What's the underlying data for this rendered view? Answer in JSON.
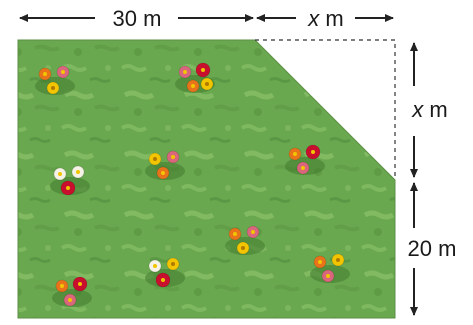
{
  "labels": {
    "top_left_value": "30 m",
    "top_right_var": "x",
    "top_right_unit": " m",
    "right_upper_var": "x",
    "right_upper_unit": " m",
    "right_lower_value": "20 m"
  },
  "colors": {
    "garden_green": "#6aa84f",
    "garden_light": "#8cc46a",
    "garden_dark": "#4f8a3a",
    "line": "#222222",
    "dashed": "#333333",
    "flower_red": "#c8102e",
    "flower_orange": "#e8731a",
    "flower_yellow": "#f2c500",
    "flower_white": "#f5f2e8",
    "flower_pink": "#d9667d"
  },
  "flower_clusters": [
    {
      "name": "cluster-1",
      "flowers": [
        "orange",
        "pink",
        "yellow"
      ]
    },
    {
      "name": "cluster-2",
      "flowers": [
        "pink",
        "red",
        "orange",
        "yellow"
      ]
    },
    {
      "name": "cluster-3",
      "flowers": [
        "yellow",
        "pink",
        "orange"
      ]
    },
    {
      "name": "cluster-4",
      "flowers": [
        "orange",
        "red",
        "pink"
      ]
    },
    {
      "name": "cluster-5",
      "flowers": [
        "white",
        "white",
        "red"
      ]
    },
    {
      "name": "cluster-6",
      "flowers": [
        "orange",
        "pink",
        "yellow"
      ]
    },
    {
      "name": "cluster-7",
      "flowers": [
        "white",
        "yellow",
        "red"
      ]
    },
    {
      "name": "cluster-8",
      "flowers": [
        "orange",
        "yellow",
        "pink"
      ]
    },
    {
      "name": "cluster-9",
      "flowers": [
        "orange",
        "red",
        "pink"
      ]
    }
  ]
}
